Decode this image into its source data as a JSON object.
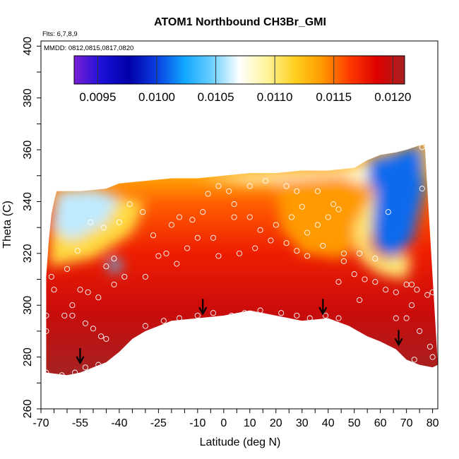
{
  "chart_data": {
    "type": "heatmap",
    "title": "ATOM1 Northbound CH3Br_GMI",
    "flights_note": "Flts: 6,7,8,9",
    "dates_note": "MMDD: 0812,0815,0817,0820",
    "xlabel": "Latitude (deg N)",
    "ylabel": "Theta (C)",
    "xlim": [
      -70,
      82
    ],
    "ylim": [
      260,
      402
    ],
    "x_ticks": [
      -70,
      -55,
      -40,
      -25,
      -10,
      0,
      10,
      20,
      30,
      40,
      50,
      60,
      70,
      80
    ],
    "x_tick_labels": [
      "-70",
      "-55",
      "-40",
      "-25",
      "-10",
      "0",
      "10",
      "20",
      "30",
      "40",
      "50",
      "60",
      "70",
      "80"
    ],
    "y_ticks": [
      260,
      280,
      300,
      320,
      340,
      360,
      380,
      400
    ],
    "y_tick_labels": [
      "260",
      "280",
      "300",
      "320",
      "340",
      "360",
      "380",
      "400"
    ],
    "colorbar": {
      "range": [
        0.0093,
        0.0121
      ],
      "ticks": [
        0.0095,
        0.01,
        0.0105,
        0.011,
        0.0115,
        0.012
      ],
      "tick_labels": [
        "0.0095",
        "0.0100",
        "0.0105",
        "0.0110",
        "0.0115",
        "0.0120"
      ],
      "colors": [
        "#7a1fd6",
        "#1a10d8",
        "#0000a8",
        "#0a3ee0",
        "#10a6ff",
        "#6ad0ff",
        "#ffffff",
        "#fff49a",
        "#ffd020",
        "#ff9a00",
        "#ff3a00",
        "#dd0000",
        "#a82020"
      ]
    },
    "field_upper_boundary": [
      [
        -68,
        311
      ],
      [
        -67,
        325
      ],
      [
        -66,
        335
      ],
      [
        -65,
        340
      ],
      [
        -64,
        344
      ],
      [
        -55,
        344
      ],
      [
        -45,
        345
      ],
      [
        -40,
        347
      ],
      [
        -30,
        348
      ],
      [
        -20,
        349
      ],
      [
        -10,
        349
      ],
      [
        0,
        350
      ],
      [
        10,
        351
      ],
      [
        20,
        351
      ],
      [
        30,
        352
      ],
      [
        40,
        352
      ],
      [
        50,
        353
      ],
      [
        55,
        356
      ],
      [
        60,
        358
      ],
      [
        66,
        359
      ],
      [
        70,
        360
      ],
      [
        73,
        361
      ],
      [
        76,
        362
      ],
      [
        77,
        362
      ]
    ],
    "field_lower_boundary": [
      [
        -68,
        274
      ],
      [
        -60,
        273
      ],
      [
        -55,
        274
      ],
      [
        -50,
        276
      ],
      [
        -45,
        278
      ],
      [
        -40,
        282
      ],
      [
        -35,
        287
      ],
      [
        -30,
        290
      ],
      [
        -25,
        292
      ],
      [
        -20,
        294
      ],
      [
        -10,
        295
      ],
      [
        0,
        296
      ],
      [
        10,
        298
      ],
      [
        20,
        296
      ],
      [
        30,
        294
      ],
      [
        40,
        295
      ],
      [
        48,
        292
      ],
      [
        55,
        288
      ],
      [
        60,
        286
      ],
      [
        66,
        283
      ],
      [
        70,
        279
      ],
      [
        75,
        277
      ],
      [
        80,
        276
      ],
      [
        82,
        277
      ]
    ],
    "field_zones": [
      {
        "name": "low-ch3br-south-top",
        "value": 0.0106,
        "points": [
          [
            -64,
            344
          ],
          [
            -50,
            345
          ],
          [
            -40,
            342
          ],
          [
            -45,
            332
          ],
          [
            -58,
            325
          ],
          [
            -66,
            330
          ]
        ]
      },
      {
        "name": "mid-south-upper",
        "value": 0.0111,
        "points": [
          [
            -66,
            330
          ],
          [
            -58,
            325
          ],
          [
            -45,
            332
          ],
          [
            -40,
            342
          ],
          [
            -30,
            340
          ],
          [
            -35,
            328
          ],
          [
            -50,
            318
          ],
          [
            -67,
            315
          ]
        ]
      },
      {
        "name": "low-ch3br-south-pocket",
        "value": 0.0104,
        "points": [
          [
            -44,
            318
          ],
          [
            -40,
            318
          ],
          [
            -39,
            313
          ],
          [
            -44,
            313
          ]
        ]
      },
      {
        "name": "north-top-cap",
        "value": 0.0108,
        "points": [
          [
            -10,
            349
          ],
          [
            20,
            351
          ],
          [
            40,
            352
          ],
          [
            50,
            353
          ],
          [
            60,
            358
          ],
          [
            70,
            360
          ],
          [
            77,
            362
          ],
          [
            77,
            350
          ],
          [
            65,
            346
          ],
          [
            50,
            347
          ],
          [
            30,
            348
          ],
          [
            10,
            347
          ]
        ]
      },
      {
        "name": "low-ch3br-north",
        "value": 0.0101,
        "points": [
          [
            55,
            356
          ],
          [
            66,
            359
          ],
          [
            76,
            362
          ],
          [
            77,
            345
          ],
          [
            72,
            325
          ],
          [
            65,
            318
          ],
          [
            58,
            322
          ],
          [
            56,
            335
          ]
        ]
      },
      {
        "name": "north-mid-orange",
        "value": 0.0114,
        "points": [
          [
            20,
            348
          ],
          [
            45,
            350
          ],
          [
            58,
            345
          ],
          [
            55,
            325
          ],
          [
            45,
            318
          ],
          [
            30,
            320
          ],
          [
            22,
            330
          ]
        ]
      },
      {
        "name": "north-margin-yellow",
        "value": 0.011,
        "points": [
          [
            50,
            330
          ],
          [
            58,
            345
          ],
          [
            56,
            322
          ],
          [
            62,
            318
          ],
          [
            72,
            320
          ],
          [
            70,
            310
          ],
          [
            60,
            312
          ],
          [
            52,
            318
          ]
        ]
      }
    ],
    "sample_points": [
      [
        -68,
        274
      ],
      [
        -62,
        273
      ],
      [
        -57,
        274
      ],
      [
        -53,
        276
      ],
      [
        -48,
        277
      ],
      [
        -45,
        287
      ],
      [
        -58,
        300
      ],
      [
        -55,
        306
      ],
      [
        -52,
        305
      ],
      [
        -48,
        303
      ],
      [
        -53,
        293
      ],
      [
        -50,
        291
      ],
      [
        -47,
        288
      ],
      [
        -66,
        311
      ],
      [
        -65,
        306
      ],
      [
        -68,
        296
      ],
      [
        -68,
        290
      ],
      [
        -61,
        296
      ],
      [
        -58,
        296
      ],
      [
        -42,
        308
      ],
      [
        -38,
        311
      ],
      [
        -45,
        315
      ],
      [
        -42,
        318
      ],
      [
        -30,
        311
      ],
      [
        -25,
        319
      ],
      [
        -22,
        320
      ],
      [
        -18,
        316
      ],
      [
        -14,
        322
      ],
      [
        -10,
        326
      ],
      [
        -8,
        336
      ],
      [
        -6,
        343
      ],
      [
        -2,
        346
      ],
      [
        2,
        344
      ],
      [
        -12,
        333
      ],
      [
        -17,
        334
      ],
      [
        -20,
        331
      ],
      [
        -27,
        327
      ],
      [
        -31,
        336
      ],
      [
        -36,
        339
      ],
      [
        -40,
        332
      ],
      [
        -46,
        330
      ],
      [
        -51,
        332
      ],
      [
        -56,
        321
      ],
      [
        -60,
        314
      ],
      [
        -30,
        292
      ],
      [
        -23,
        294
      ],
      [
        -17,
        295
      ],
      [
        -10,
        296
      ],
      [
        -4,
        297
      ],
      [
        3,
        296
      ],
      [
        8,
        297
      ],
      [
        14,
        298
      ],
      [
        22,
        297
      ],
      [
        28,
        296
      ],
      [
        33,
        295
      ],
      [
        39,
        296
      ],
      [
        44,
        295
      ],
      [
        52,
        302
      ],
      [
        58,
        309
      ],
      [
        62,
        306
      ],
      [
        66,
        305
      ],
      [
        70,
        308
      ],
      [
        72,
        308
      ],
      [
        74,
        306
      ],
      [
        78,
        304
      ],
      [
        80,
        305
      ],
      [
        72,
        300
      ],
      [
        75,
        290
      ],
      [
        79,
        284
      ],
      [
        80,
        280
      ],
      [
        73,
        279
      ],
      [
        66,
        295
      ],
      [
        70,
        295
      ],
      [
        58,
        318
      ],
      [
        52,
        320
      ],
      [
        46,
        317
      ],
      [
        38,
        323
      ],
      [
        32,
        319
      ],
      [
        28,
        321
      ],
      [
        24,
        324
      ],
      [
        18,
        325
      ],
      [
        14,
        329
      ],
      [
        10,
        334
      ],
      [
        4,
        334
      ],
      [
        -4,
        326
      ],
      [
        -2,
        319
      ],
      [
        6,
        320
      ],
      [
        12,
        322
      ],
      [
        20,
        331
      ],
      [
        26,
        334
      ],
      [
        30,
        338
      ],
      [
        36,
        344
      ],
      [
        42,
        339
      ],
      [
        44,
        337
      ],
      [
        40,
        334
      ],
      [
        36,
        331
      ],
      [
        32,
        328
      ],
      [
        28,
        344
      ],
      [
        24,
        346
      ],
      [
        16,
        348
      ],
      [
        10,
        346
      ],
      [
        4,
        339
      ],
      [
        46,
        320
      ],
      [
        50,
        312
      ],
      [
        54,
        310
      ],
      [
        44,
        309
      ],
      [
        63,
        336
      ],
      [
        76,
        345
      ],
      [
        76,
        361
      ]
    ],
    "arrows": [
      [
        -55,
        278
      ],
      [
        -8,
        297
      ],
      [
        38,
        297
      ],
      [
        67,
        285
      ]
    ]
  }
}
